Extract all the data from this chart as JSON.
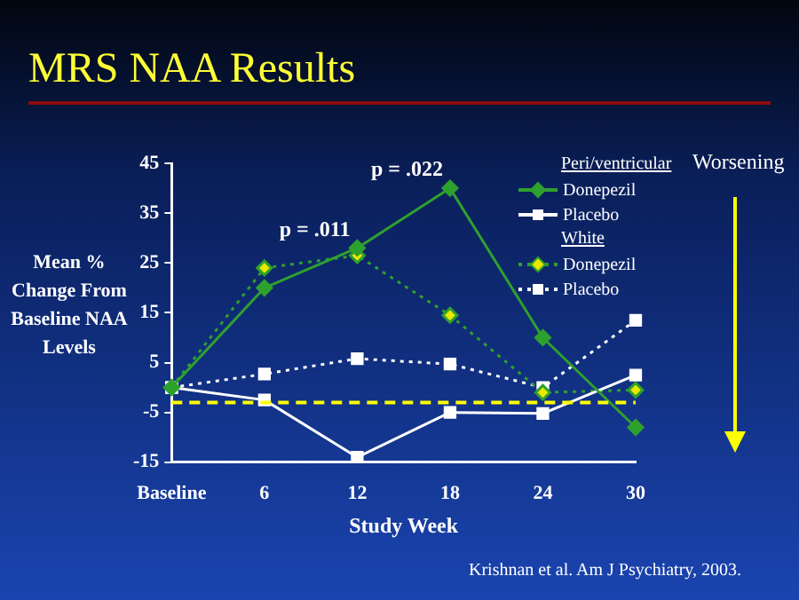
{
  "chart_data": {
    "type": "line",
    "title": "MRS NAA Results",
    "xlabel": "Study Week",
    "ylabel": "Mean % Change From Baseline NAA Levels",
    "categories": [
      "Baseline",
      "6",
      "12",
      "18",
      "24",
      "30"
    ],
    "series": [
      {
        "name": "Donepezil",
        "color": "#2ea02e",
        "marker": "diamond",
        "line_style": "solid",
        "values": [
          0,
          20,
          28,
          40,
          10,
          -8
        ]
      },
      {
        "name": "Placebo",
        "color": "#ffffff",
        "marker": "square",
        "line_style": "solid",
        "values": [
          0,
          -2.5,
          -14,
          -5,
          -5.2,
          2.5
        ]
      },
      {
        "name": "Donepezil",
        "color": "#e8e800",
        "marker": "diamond",
        "line_style": "dotted",
        "values": [
          0,
          24,
          26.5,
          14.5,
          -1,
          -0.5
        ]
      },
      {
        "name": "Placebo",
        "color": "#ffffff",
        "marker": "square",
        "line_style": "dotted",
        "values": [
          0,
          2.7,
          5.8,
          4.7,
          0,
          13.5
        ]
      }
    ],
    "ylim": [
      -15,
      45
    ],
    "yticks": [
      -15,
      -5,
      5,
      15,
      25,
      35,
      45
    ],
    "grid": false,
    "legend": "top right",
    "ref_lines": [
      {
        "axis": "y",
        "value": -3,
        "color": "#ffff00",
        "line_style": "dashed"
      }
    ],
    "annotations": [
      "Peri/ventricular",
      "White",
      "Worsening",
      "Krishnan et al. Am J Psychiatry, 2003.",
      {
        "text": "p = .011",
        "x": "12",
        "y": 28
      },
      {
        "text": "p = .022",
        "x": "18",
        "y": 40
      }
    ]
  }
}
